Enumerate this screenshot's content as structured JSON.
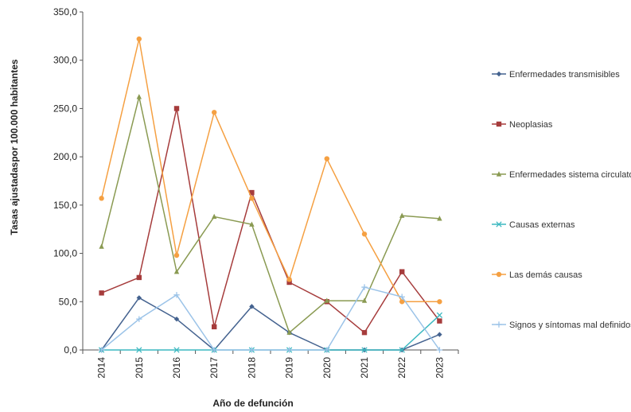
{
  "chart_data": {
    "type": "line",
    "title": "",
    "xlabel": "Año de defunción",
    "ylabel": "Tasas ajustadaspor 100.000 habitantes",
    "ylim": [
      0,
      350
    ],
    "yticks": [
      "0,0",
      "50,0",
      "100,0",
      "150,0",
      "200,0",
      "250,0",
      "300,0",
      "350,0"
    ],
    "categories": [
      "2014",
      "2015",
      "2016",
      "2017",
      "2018",
      "2019",
      "2020",
      "2021",
      "2022",
      "2023"
    ],
    "grid": false,
    "legend_position": "right",
    "series": [
      {
        "name": "Enfermedades transmisibles",
        "color": "#44628f",
        "marker": "diamond",
        "values": [
          0,
          54,
          32,
          0,
          45,
          18,
          0,
          0,
          0,
          16
        ]
      },
      {
        "name": "Neoplasias",
        "color": "#a63c3c",
        "marker": "square",
        "values": [
          59,
          75,
          250,
          24,
          163,
          70,
          50,
          18,
          81,
          30
        ]
      },
      {
        "name": "Enfermedades sistema circulatorio",
        "color": "#8a9a52",
        "marker": "triangle",
        "values": [
          107,
          262,
          81,
          138,
          130,
          18,
          51,
          51,
          139,
          136
        ]
      },
      {
        "name": "Causas externas",
        "color": "#3cb8c0",
        "marker": "x",
        "values": [
          0,
          0,
          0,
          0,
          0,
          0,
          0,
          0,
          0,
          36
        ]
      },
      {
        "name": "Las demás causas",
        "color": "#f5a042",
        "marker": "circle",
        "values": [
          157,
          322,
          98,
          246,
          157,
          73,
          198,
          120,
          50,
          50
        ]
      },
      {
        "name": "Signos y síntomas mal definidos",
        "color": "#9bc3e8",
        "marker": "plus",
        "values": [
          0,
          32,
          57,
          0,
          0,
          0,
          0,
          65,
          55,
          0
        ]
      }
    ]
  }
}
